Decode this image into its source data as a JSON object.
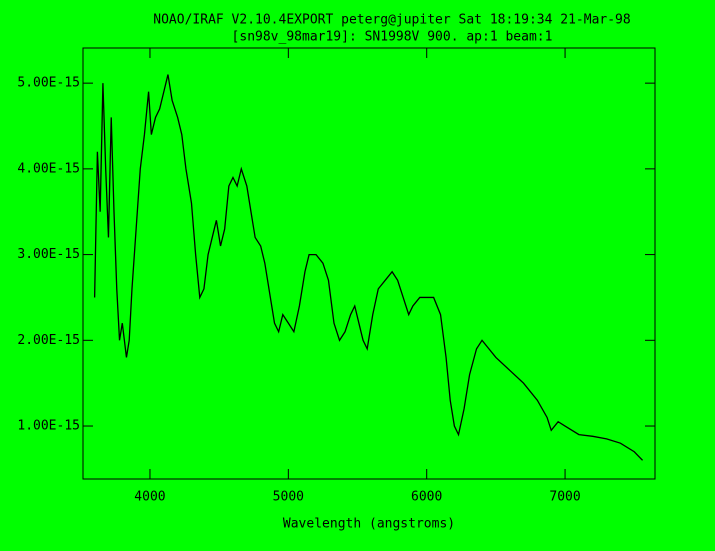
{
  "chart_data": {
    "type": "line",
    "title": "NOAO/IRAF V2.10.4EXPORT peterg@jupiter Sat 18:19:34 21-Mar-98",
    "subtitle": "[sn98v_98mar19]: SN1998V 900. ap:1 beam:1",
    "x_label": "Wavelength (angstroms)",
    "xlim": [
      3516,
      7650
    ],
    "ylim": [
      3.82e-16,
      5.41e-15
    ],
    "xticks": [
      4000,
      5000,
      6000,
      7000
    ],
    "yticks": [
      {
        "value": 1e-15,
        "label": "1.00E-15"
      },
      {
        "value": 2e-15,
        "label": "2.00E-15"
      },
      {
        "value": 3e-15,
        "label": "3.00E-15"
      },
      {
        "value": 4e-15,
        "label": "4.00E-15"
      },
      {
        "value": 5e-15,
        "label": "5.00E-15"
      }
    ],
    "series": [
      {
        "color": "#000000",
        "x": [
          3600,
          3620,
          3640,
          3660,
          3680,
          3700,
          3720,
          3740,
          3760,
          3780,
          3800,
          3830,
          3850,
          3870,
          3900,
          3930,
          3960,
          3990,
          4010,
          4040,
          4070,
          4100,
          4130,
          4160,
          4200,
          4230,
          4260,
          4300,
          4330,
          4360,
          4390,
          4420,
          4450,
          4480,
          4510,
          4540,
          4570,
          4600,
          4630,
          4660,
          4700,
          4730,
          4760,
          4800,
          4830,
          4870,
          4900,
          4930,
          4960,
          5000,
          5040,
          5080,
          5120,
          5150,
          5200,
          5250,
          5290,
          5330,
          5370,
          5410,
          5450,
          5480,
          5510,
          5540,
          5570,
          5610,
          5650,
          5700,
          5750,
          5790,
          5830,
          5870,
          5900,
          5950,
          6000,
          6050,
          6100,
          6140,
          6170,
          6200,
          6230,
          6270,
          6310,
          6360,
          6400,
          6450,
          6500,
          6600,
          6700,
          6800,
          6870,
          6900,
          6950,
          7000,
          7100,
          7200,
          7300,
          7400,
          7500,
          7560
        ],
        "values": [
          2.5e-15,
          4.2e-15,
          3.5e-15,
          5e-15,
          4e-15,
          3.2e-15,
          4.6e-15,
          3.5e-15,
          2.6e-15,
          2e-15,
          2.2e-15,
          1.8e-15,
          2e-15,
          2.6e-15,
          3.3e-15,
          4e-15,
          4.4e-15,
          4.9e-15,
          4.4e-15,
          4.6e-15,
          4.7e-15,
          4.9e-15,
          5.1e-15,
          4.8e-15,
          4.6e-15,
          4.4e-15,
          4e-15,
          3.6e-15,
          3e-15,
          2.5e-15,
          2.6e-15,
          3e-15,
          3.2e-15,
          3.4e-15,
          3.1e-15,
          3.3e-15,
          3.8e-15,
          3.9e-15,
          3.8e-15,
          4e-15,
          3.8e-15,
          3.5e-15,
          3.2e-15,
          3.1e-15,
          2.9e-15,
          2.5e-15,
          2.2e-15,
          2.1e-15,
          2.3e-15,
          2.2e-15,
          2.1e-15,
          2.4e-15,
          2.8e-15,
          3e-15,
          3e-15,
          2.9e-15,
          2.7e-15,
          2.2e-15,
          2e-15,
          2.1e-15,
          2.3e-15,
          2.4e-15,
          2.2e-15,
          2e-15,
          1.9e-15,
          2.3e-15,
          2.6e-15,
          2.7e-15,
          2.8e-15,
          2.7e-15,
          2.5e-15,
          2.3e-15,
          2.4e-15,
          2.5e-15,
          2.5e-15,
          2.5e-15,
          2.3e-15,
          1.8e-15,
          1.3e-15,
          1e-15,
          9e-16,
          1.2e-15,
          1.6e-15,
          1.9e-15,
          2e-15,
          1.9e-15,
          1.8e-15,
          1.65e-15,
          1.5e-15,
          1.3e-15,
          1.1e-15,
          9.5e-16,
          1.05e-15,
          1e-15,
          9e-16,
          8.8e-16,
          8.5e-16,
          8e-16,
          7e-16,
          6e-16
        ]
      }
    ]
  }
}
